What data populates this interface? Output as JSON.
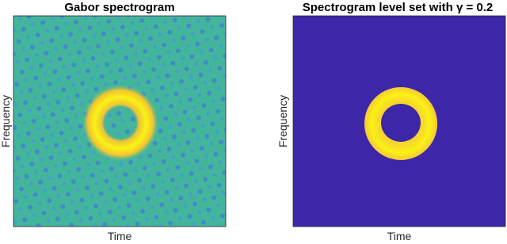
{
  "panels": [
    {
      "title": "Gabor spectrogram",
      "x_label": "Time",
      "y_label": "Frequency"
    },
    {
      "title": "Spectrogram level set with γ = 0.2",
      "x_label": "Time",
      "y_label": "Frequency"
    }
  ]
}
